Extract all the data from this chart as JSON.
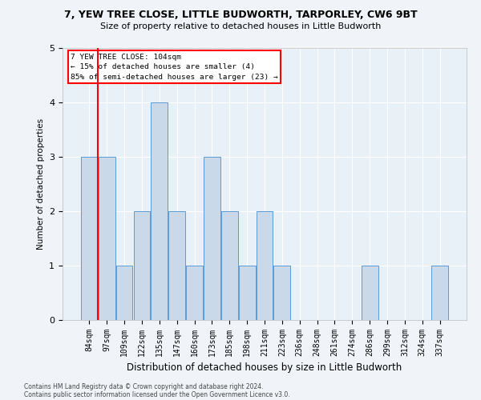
{
  "title1": "7, YEW TREE CLOSE, LITTLE BUDWORTH, TARPORLEY, CW6 9BT",
  "title2": "Size of property relative to detached houses in Little Budworth",
  "xlabel": "Distribution of detached houses by size in Little Budworth",
  "ylabel": "Number of detached properties",
  "categories": [
    "84sqm",
    "97sqm",
    "109sqm",
    "122sqm",
    "135sqm",
    "147sqm",
    "160sqm",
    "173sqm",
    "185sqm",
    "198sqm",
    "211sqm",
    "223sqm",
    "236sqm",
    "248sqm",
    "261sqm",
    "274sqm",
    "286sqm",
    "299sqm",
    "312sqm",
    "324sqm",
    "337sqm"
  ],
  "values": [
    3,
    3,
    1,
    2,
    4,
    2,
    1,
    3,
    2,
    1,
    2,
    1,
    0,
    0,
    0,
    0,
    1,
    0,
    0,
    0,
    1
  ],
  "bar_color": "#c9d9ea",
  "bar_edge_color": "#5b9bd5",
  "red_line_after_index": 1,
  "annotation_title": "7 YEW TREE CLOSE: 104sqm",
  "annotation_line1": "← 15% of detached houses are smaller (4)",
  "annotation_line2": "85% of semi-detached houses are larger (23) →",
  "footer1": "Contains HM Land Registry data © Crown copyright and database right 2024.",
  "footer2": "Contains public sector information licensed under the Open Government Licence v3.0.",
  "bg_color": "#f0f4f8",
  "plot_bg_color": "#e8f0f8",
  "ylim": [
    0,
    5
  ],
  "yticks": [
    0,
    1,
    2,
    3,
    4,
    5
  ]
}
